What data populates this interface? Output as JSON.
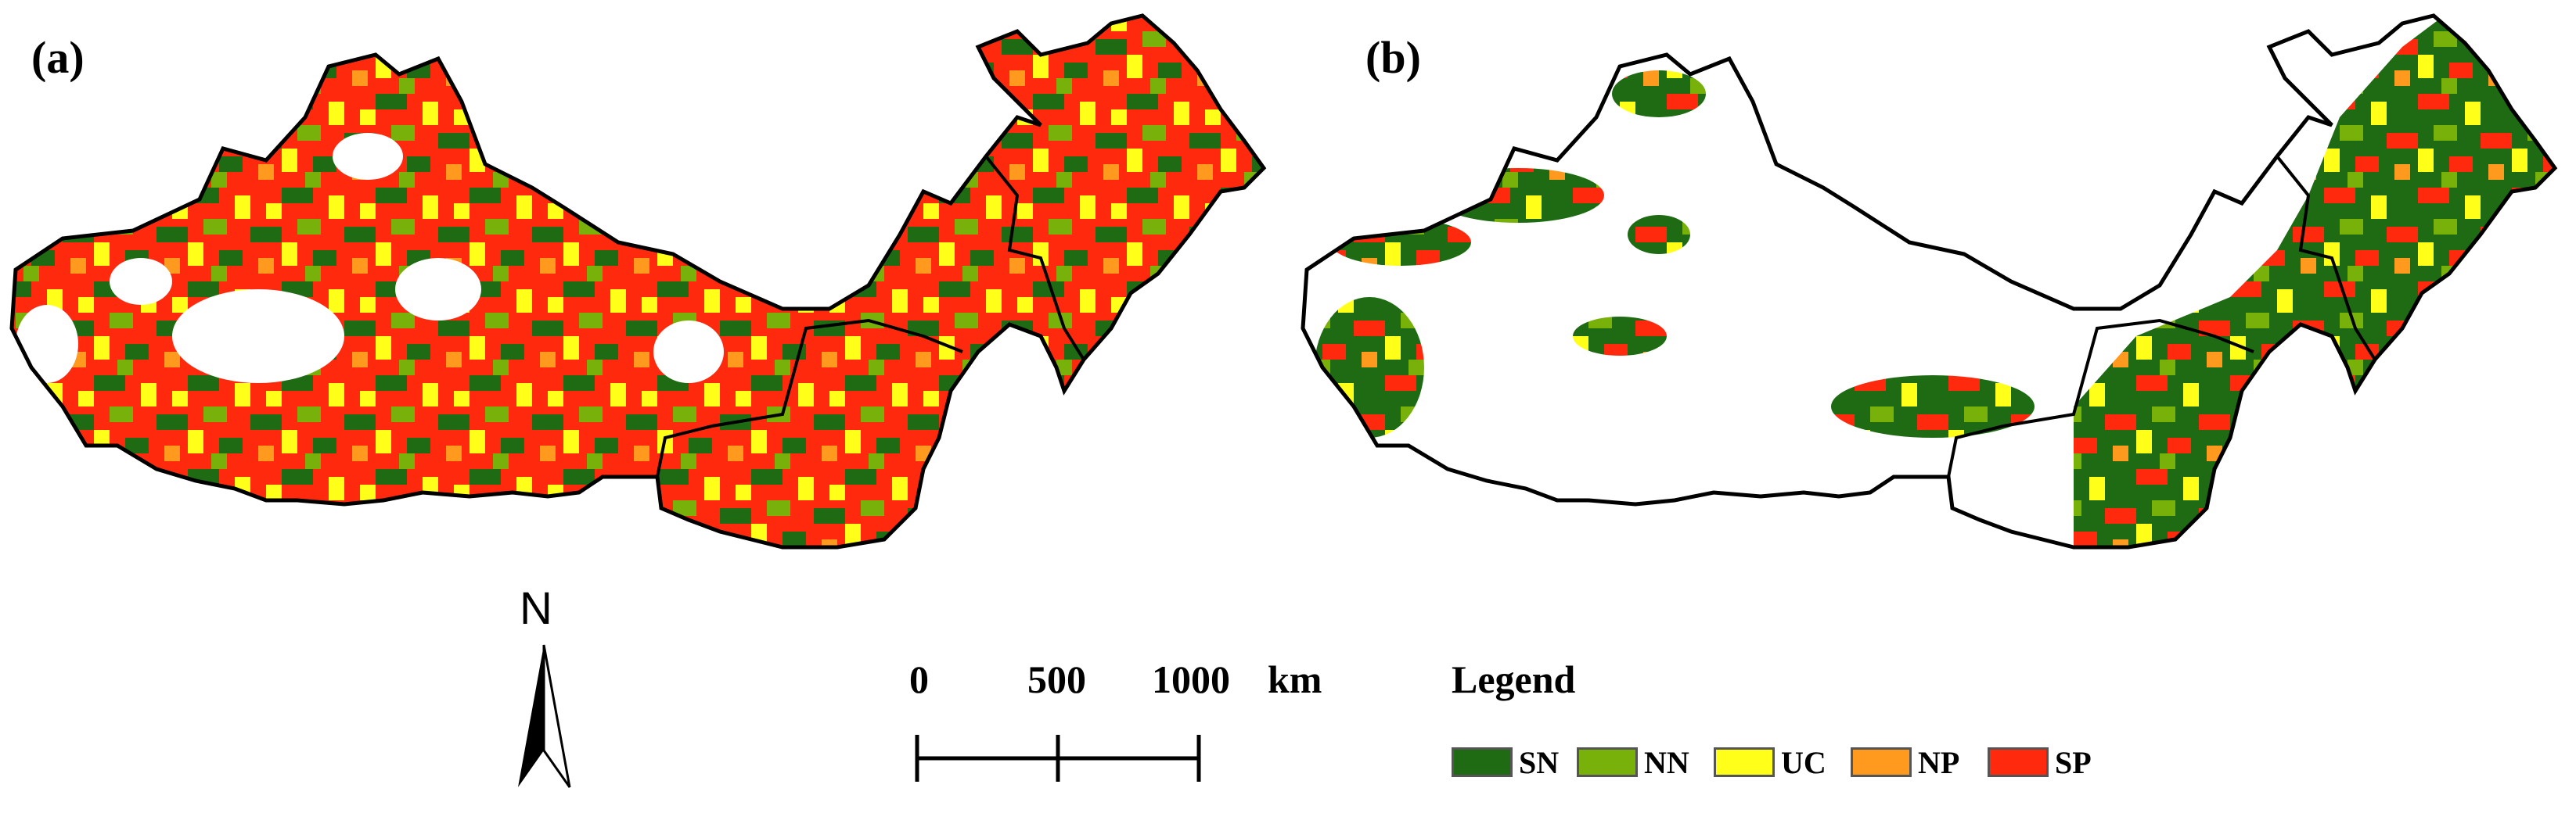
{
  "panels": [
    {
      "label": "(a)"
    },
    {
      "label": "(b)"
    }
  ],
  "north_arrow": {
    "letter": "N"
  },
  "scale_bar": {
    "ticks": [
      "0",
      "500",
      "1000"
    ],
    "unit": "km"
  },
  "legend": {
    "title": "Legend",
    "classes": [
      {
        "label": "SN",
        "color": "#1e6b13"
      },
      {
        "label": "NN",
        "color": "#78b10a"
      },
      {
        "label": "UC",
        "color": "#ffff1a"
      },
      {
        "label": "NP",
        "color": "#ff9a1e"
      },
      {
        "label": "SP",
        "color": "#ff2a0e"
      }
    ]
  }
}
